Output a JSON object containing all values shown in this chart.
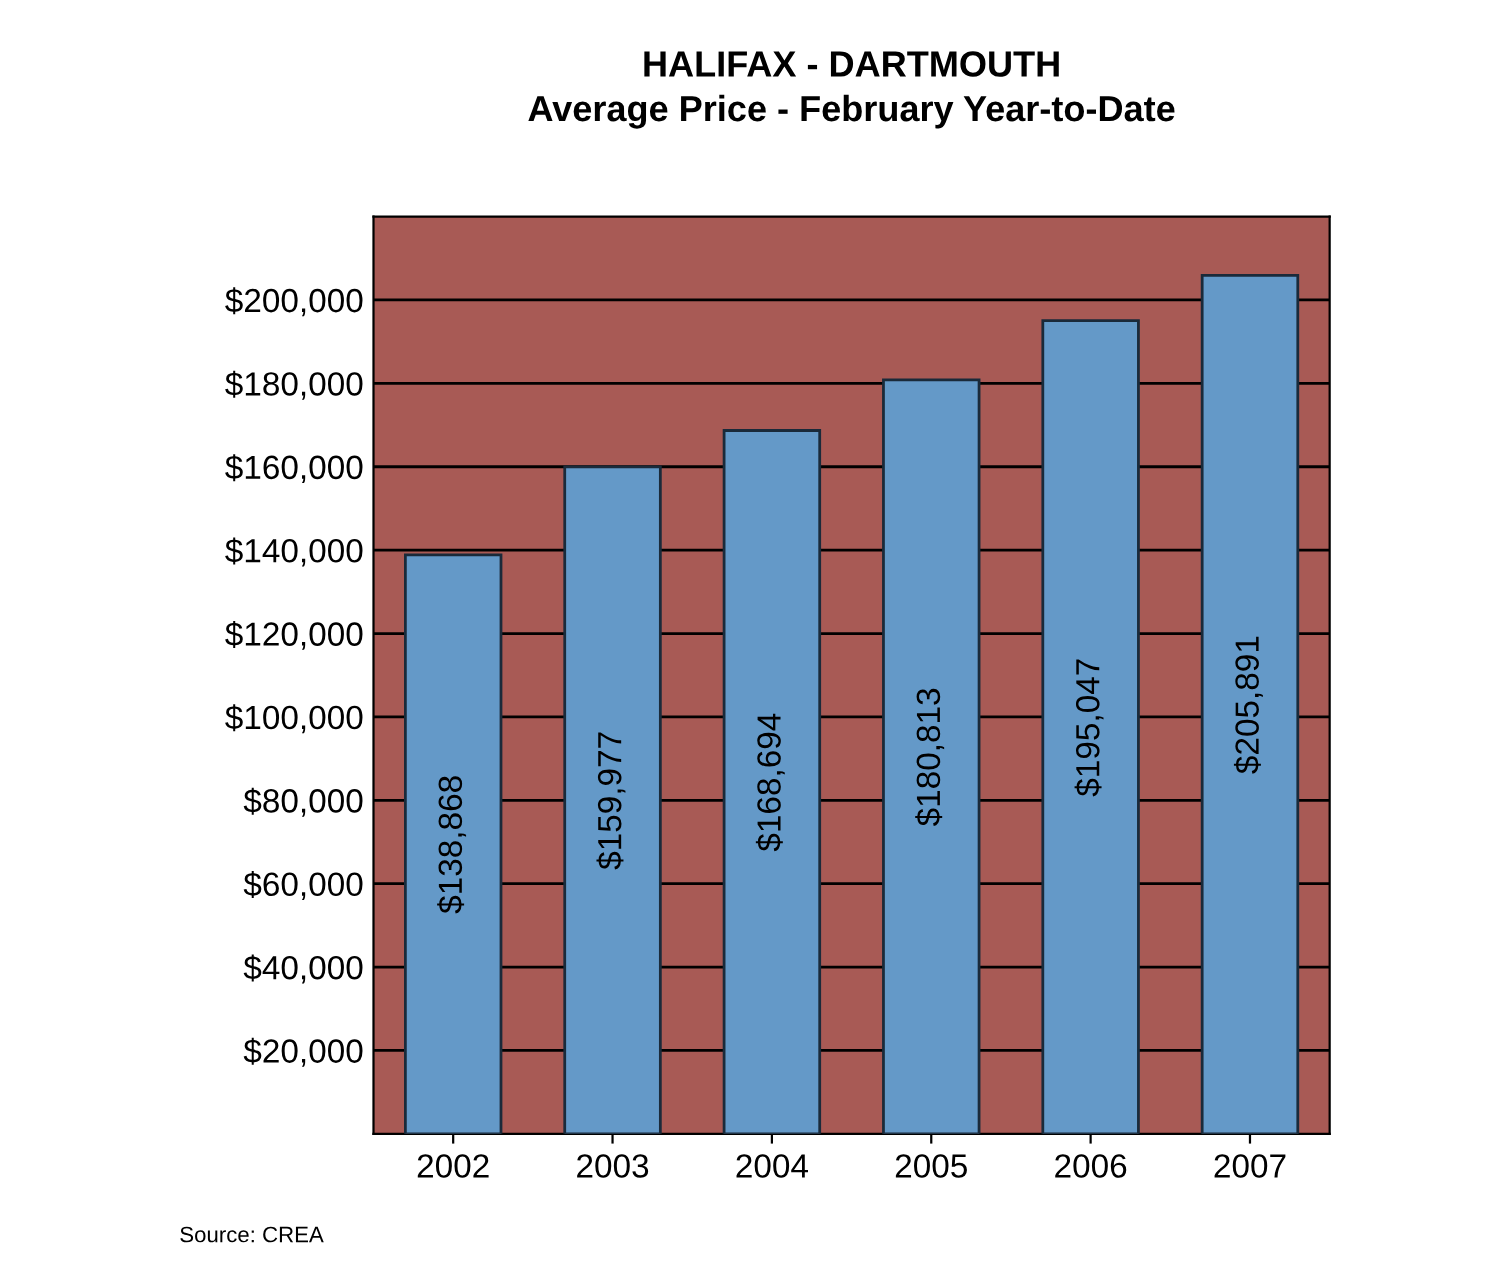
{
  "chart_data": {
    "type": "bar",
    "title": "HALIFAX - DARTMOUTH",
    "subtitle": "Average Price - February Year-to-Date",
    "categories": [
      "2002",
      "2003",
      "2004",
      "2005",
      "2006",
      "2007"
    ],
    "values": [
      138868,
      159977,
      168694,
      180813,
      195047,
      205891
    ],
    "value_labels": [
      "$138,868",
      "$159,977",
      "$168,694",
      "$180,813",
      "$195,047",
      "$205,891"
    ],
    "color": "#6499c8",
    "ylim": [
      0,
      220000
    ],
    "yticks": [
      {
        "value": 20000,
        "label": "$20,000"
      },
      {
        "value": 40000,
        "label": "$40,000"
      },
      {
        "value": 60000,
        "label": "$60,000"
      },
      {
        "value": 80000,
        "label": "$80,000"
      },
      {
        "value": 100000,
        "label": "$100,000"
      },
      {
        "value": 120000,
        "label": "$120,000"
      },
      {
        "value": 140000,
        "label": "$140,000"
      },
      {
        "value": 160000,
        "label": "$160,000"
      },
      {
        "value": 180000,
        "label": "$180,000"
      },
      {
        "value": 200000,
        "label": "$200,000"
      }
    ],
    "grid": "y",
    "annotations": [
      "Source: CREA"
    ]
  }
}
